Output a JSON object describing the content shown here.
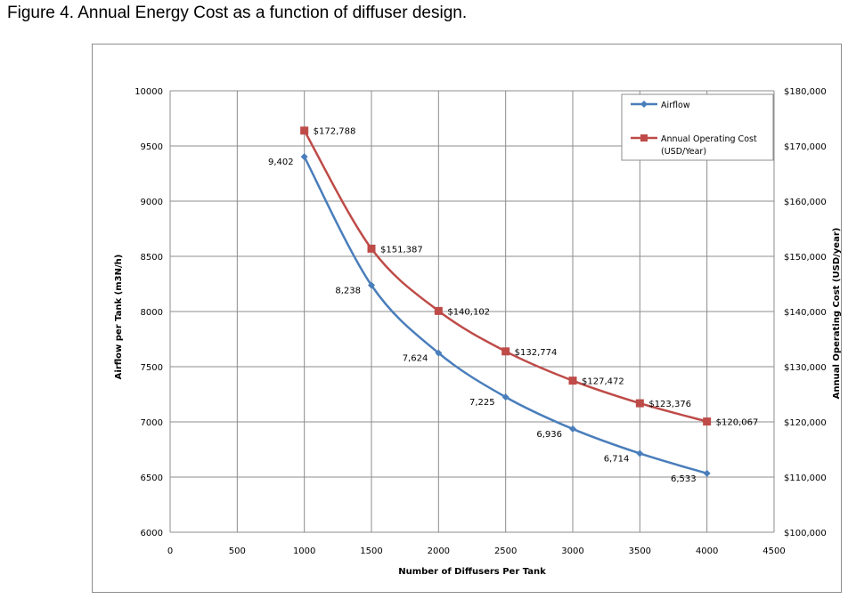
{
  "figure_title": "Figure 4.  Annual Energy Cost as a function of diffuser design.",
  "chart_data": {
    "type": "line",
    "xlabel": "Number of Diffusers Per Tank",
    "ylabel": "Airflow per Tank (m3N/h)",
    "y2label": "Annual Operating Cost (USD/year)",
    "xlim": [
      0,
      4500
    ],
    "ylim": [
      6000,
      10000
    ],
    "y2lim": [
      100000,
      180000
    ],
    "x_ticks": [
      "0",
      "500",
      "1000",
      "1500",
      "2000",
      "2500",
      "3000",
      "3500",
      "4000",
      "4500"
    ],
    "y_ticks": [
      "6000",
      "6500",
      "7000",
      "7500",
      "8000",
      "8500",
      "9000",
      "9500",
      "10000"
    ],
    "y2_ticks": [
      "$100,000",
      "$110,000",
      "$120,000",
      "$130,000",
      "$140,000",
      "$150,000",
      "$160,000",
      "$170,000",
      "$180,000"
    ],
    "grid": true,
    "legend_position": "top-right",
    "x": [
      1000,
      1500,
      2000,
      2500,
      3000,
      3500,
      4000
    ],
    "series": [
      {
        "name": "Airflow",
        "axis": "left",
        "color": "#4a7ebb",
        "marker": "diamond",
        "values": [
          9402,
          8238,
          7624,
          7225,
          6936,
          6714,
          6533
        ],
        "labels": [
          "9,402",
          "8,238",
          "7,624",
          "7,225",
          "6,936",
          "6,714",
          "6,533"
        ]
      },
      {
        "name": "Annual Operating Cost (USD/Year)",
        "legend_lines": [
          "Annual Operating Cost",
          "(USD/Year)"
        ],
        "axis": "right",
        "color": "#be4b48",
        "marker": "square",
        "values": [
          172788,
          151387,
          140102,
          132774,
          127472,
          123376,
          120067
        ],
        "labels": [
          "$172,788",
          "$151,387",
          "$140,102",
          "$132,774",
          "$127,472",
          "$123,376",
          "$120,067"
        ]
      }
    ]
  }
}
